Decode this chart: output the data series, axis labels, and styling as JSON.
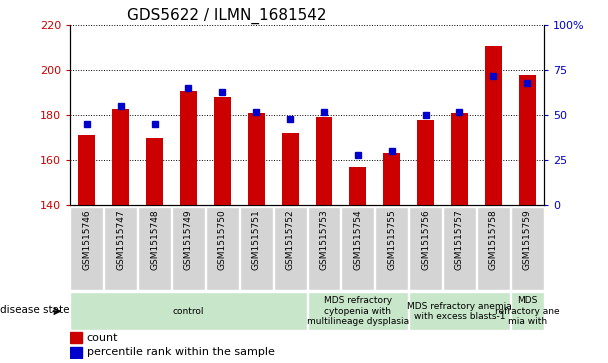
{
  "title": "GDS5622 / ILMN_1681542",
  "samples": [
    "GSM1515746",
    "GSM1515747",
    "GSM1515748",
    "GSM1515749",
    "GSM1515750",
    "GSM1515751",
    "GSM1515752",
    "GSM1515753",
    "GSM1515754",
    "GSM1515755",
    "GSM1515756",
    "GSM1515757",
    "GSM1515758",
    "GSM1515759"
  ],
  "counts": [
    171,
    183,
    170,
    191,
    188,
    181,
    172,
    179,
    157,
    163,
    178,
    181,
    211,
    198
  ],
  "percentiles": [
    45,
    55,
    45,
    65,
    63,
    52,
    48,
    52,
    28,
    30,
    50,
    52,
    72,
    68
  ],
  "ylim_left": [
    140,
    220
  ],
  "ylim_right": [
    0,
    100
  ],
  "yticks_left": [
    140,
    160,
    180,
    200,
    220
  ],
  "yticks_right": [
    0,
    25,
    50,
    75,
    100
  ],
  "bar_color": "#cc0000",
  "dot_color": "#0000cc",
  "bg_color": "#ffffff",
  "group_boundaries": [
    {
      "start": 0,
      "end": 7,
      "label": "control"
    },
    {
      "start": 7,
      "end": 10,
      "label": "MDS refractory\ncytopenia with\nmultilineage dysplasia"
    },
    {
      "start": 10,
      "end": 13,
      "label": "MDS refractory anemia\nwith excess blasts-1"
    },
    {
      "start": 13,
      "end": 14,
      "label": "MDS\nrefractory ane\nmia with"
    }
  ],
  "group_bg": "#c8e6c9",
  "sample_box_bg": "#d4d4d4",
  "disease_state_label": "disease state",
  "legend_count_label": "count",
  "legend_percentile_label": "percentile rank within the sample",
  "right_ytick_labels": [
    "0",
    "25",
    "50",
    "75",
    "100%"
  ]
}
